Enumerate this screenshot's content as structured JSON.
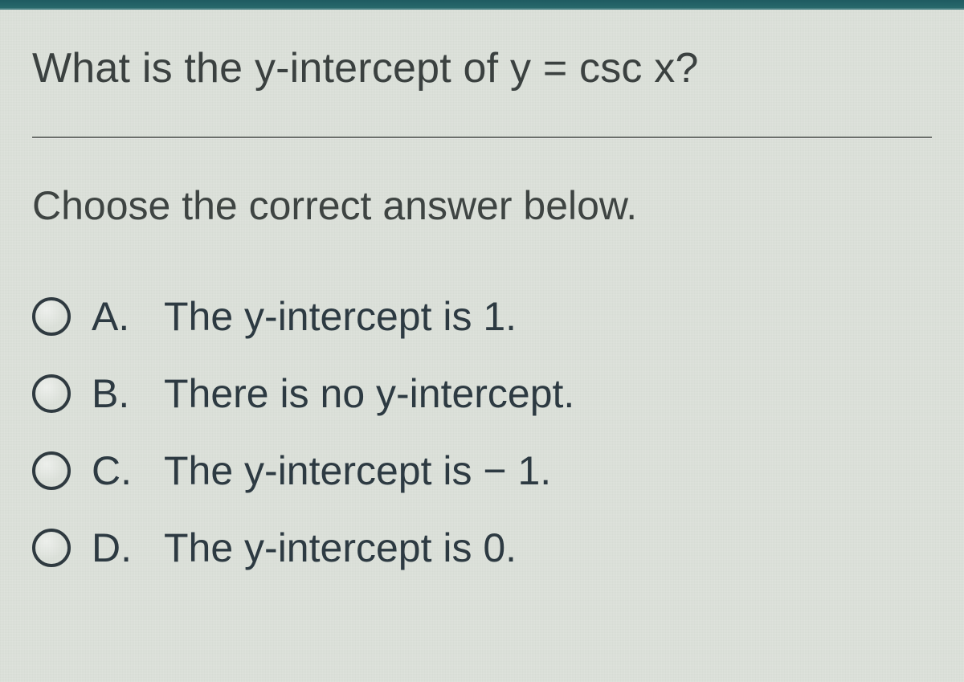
{
  "theme": {
    "background_color": "#dbe0d9",
    "text_color": "#303532",
    "accent_bar_color": "#1f5b61",
    "divider_color": "#6b6f6b",
    "radio_border_color": "#2f3a40",
    "font_family": "Arial",
    "question_fontsize": 52,
    "instruction_fontsize": 50,
    "choice_fontsize": 50
  },
  "question": {
    "text": "What is the y-intercept of y = csc  x?"
  },
  "instruction": "Choose the correct answer below.",
  "choices": [
    {
      "letter": "A.",
      "text": "The y-intercept is 1.",
      "selected": false
    },
    {
      "letter": "B.",
      "text": "There is no y-intercept.",
      "selected": false
    },
    {
      "letter": "C.",
      "text": "The y-intercept is  − 1.",
      "selected": false
    },
    {
      "letter": "D.",
      "text": "The y-intercept is 0.",
      "selected": false
    }
  ]
}
